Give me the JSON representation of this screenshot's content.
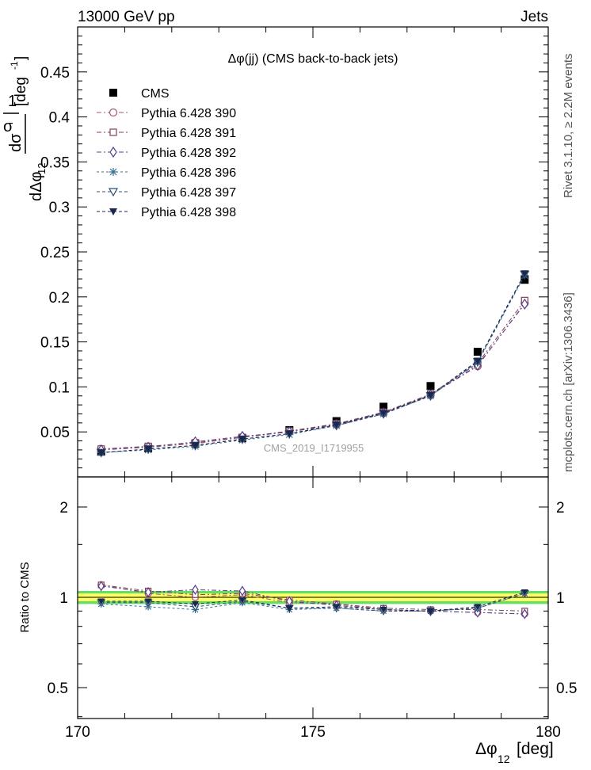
{
  "header": {
    "left": "13000 GeV pp",
    "right": "Jets"
  },
  "side_labels": {
    "rivet": "Rivet 3.1.10, ≥ 2.2M events",
    "mcplots": "mcplots.cern.ch [arXiv:1306.3436]"
  },
  "watermark": "CMS_2019_I1719955",
  "axes": {
    "xlabel": "Δφ",
    "xlabel_sub": "12",
    "xlabel_unit": "[deg]",
    "ylabel_top": "1/σ dσ/dΔφ12 [deg-1]",
    "ylabel_bottom": "Ratio to CMS"
  },
  "chart_data": [
    {
      "type": "scatter",
      "title": "Δφ(jj) (CMS back-to-back jets)",
      "x": [
        170.5,
        171.5,
        172.5,
        173.5,
        174.5,
        175.5,
        176.5,
        177.5,
        178.5,
        179.5
      ],
      "xlim": [
        170,
        180
      ],
      "ylim": [
        0,
        0.5
      ],
      "xticks": [
        170,
        175,
        180
      ],
      "yticks": [
        0.05,
        0.1,
        0.15,
        0.2,
        0.25,
        0.3,
        0.35,
        0.4,
        0.45
      ],
      "ytick_labels": [
        "0.05",
        "0.1",
        "0.15",
        "0.2",
        "0.25",
        "0.3",
        "0.35",
        "0.4",
        "0.45"
      ],
      "legend_position": "top-left",
      "series": [
        {
          "name": "CMS",
          "color": "#000000",
          "marker": "square-filled",
          "values": [
            0.028,
            0.032,
            0.037,
            0.043,
            0.052,
            0.062,
            0.078,
            0.101,
            0.139,
            0.219
          ]
        },
        {
          "name": "Pythia 6.428 390",
          "color": "#a3586e",
          "marker": "circle-open",
          "values": [
            0.031,
            0.033,
            0.037,
            0.044,
            0.05,
            0.059,
            0.071,
            0.091,
            0.123,
            0.193
          ]
        },
        {
          "name": "Pythia 6.428 391",
          "color": "#804050",
          "marker": "square-open",
          "values": [
            0.031,
            0.034,
            0.038,
            0.044,
            0.051,
            0.059,
            0.072,
            0.092,
            0.126,
            0.196
          ]
        },
        {
          "name": "Pythia 6.428 392",
          "color": "#5a3c8e",
          "marker": "diamond-open",
          "values": [
            0.03,
            0.033,
            0.039,
            0.045,
            0.05,
            0.058,
            0.071,
            0.091,
            0.124,
            0.192
          ]
        },
        {
          "name": "Pythia 6.428 396",
          "color": "#3a6f96",
          "marker": "star",
          "values": [
            0.027,
            0.03,
            0.034,
            0.041,
            0.047,
            0.057,
            0.07,
            0.09,
            0.127,
            0.224
          ]
        },
        {
          "name": "Pythia 6.428 397",
          "color": "#2f4f70",
          "marker": "triangle-down-open",
          "values": [
            0.027,
            0.031,
            0.035,
            0.042,
            0.048,
            0.057,
            0.07,
            0.09,
            0.128,
            0.225
          ]
        },
        {
          "name": "Pythia 6.428 398",
          "color": "#1a2850",
          "marker": "triangle-down-filled",
          "values": [
            0.027,
            0.031,
            0.035,
            0.042,
            0.048,
            0.058,
            0.071,
            0.091,
            0.129,
            0.226
          ]
        }
      ]
    },
    {
      "type": "scatter",
      "title": "",
      "x": [
        170.5,
        171.5,
        172.5,
        173.5,
        174.5,
        175.5,
        176.5,
        177.5,
        178.5,
        179.5
      ],
      "xlim": [
        170,
        180
      ],
      "ylim": [
        0.3,
        2.4
      ],
      "ylabel": "Ratio to CMS",
      "ytick_labels": [
        "0.5",
        "1",
        "2"
      ],
      "yticks": [
        0.5,
        1,
        2
      ],
      "band": {
        "inner": [
          0.97,
          1.03
        ],
        "outer": [
          0.95,
          1.05
        ],
        "inner_color": "#ffff66",
        "outer_color": "#66dd66"
      },
      "series": [
        {
          "name": "Pythia 6.428 390",
          "color": "#a3586e",
          "marker": "circle-open",
          "values": [
            1.1,
            1.03,
            1.0,
            1.02,
            0.96,
            0.95,
            0.91,
            0.9,
            0.89,
            0.88
          ]
        },
        {
          "name": "Pythia 6.428 391",
          "color": "#804050",
          "marker": "square-open",
          "values": [
            1.1,
            1.05,
            1.02,
            1.03,
            0.98,
            0.95,
            0.92,
            0.91,
            0.91,
            0.9
          ]
        },
        {
          "name": "Pythia 6.428 392",
          "color": "#5a3c8e",
          "marker": "diamond-open",
          "values": [
            1.09,
            1.04,
            1.06,
            1.05,
            0.97,
            0.94,
            0.91,
            0.9,
            0.89,
            0.88
          ]
        },
        {
          "name": "Pythia 6.428 396",
          "color": "#3a6f96",
          "marker": "star",
          "values": [
            0.95,
            0.93,
            0.91,
            0.96,
            0.91,
            0.92,
            0.9,
            0.9,
            0.92,
            1.03
          ]
        },
        {
          "name": "Pythia 6.428 397",
          "color": "#2f4f70",
          "marker": "triangle-down-open",
          "values": [
            0.96,
            0.96,
            0.93,
            0.97,
            0.92,
            0.92,
            0.9,
            0.9,
            0.92,
            1.03
          ]
        },
        {
          "name": "Pythia 6.428 398",
          "color": "#1a2850",
          "marker": "triangle-down-filled",
          "values": [
            0.97,
            0.97,
            0.95,
            0.98,
            0.92,
            0.93,
            0.91,
            0.9,
            0.93,
            1.04
          ]
        }
      ]
    }
  ]
}
